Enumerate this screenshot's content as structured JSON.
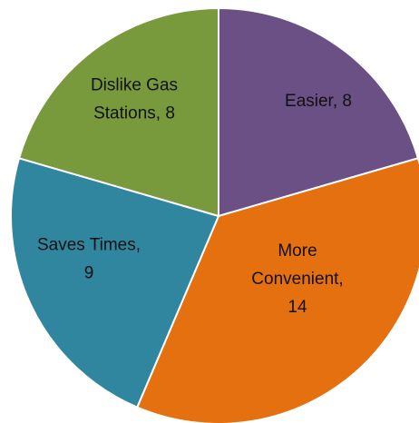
{
  "chart_data": {
    "type": "pie",
    "categories": [
      "Easier",
      "More Convenient",
      "Saves Times",
      "Dislike Gas Stations"
    ],
    "values": [
      8,
      14,
      9,
      8
    ],
    "labels": [
      [
        "Easier, 8"
      ],
      [
        "More",
        "Convenient,",
        "14"
      ],
      [
        "Saves Times,",
        "9"
      ],
      [
        "Dislike Gas",
        "Stations, 8"
      ]
    ],
    "colors": [
      "#6a5084",
      "#e5700f",
      "#31869f",
      "#789a3d"
    ],
    "start_angle_deg": 0,
    "direction": "clockwise"
  }
}
